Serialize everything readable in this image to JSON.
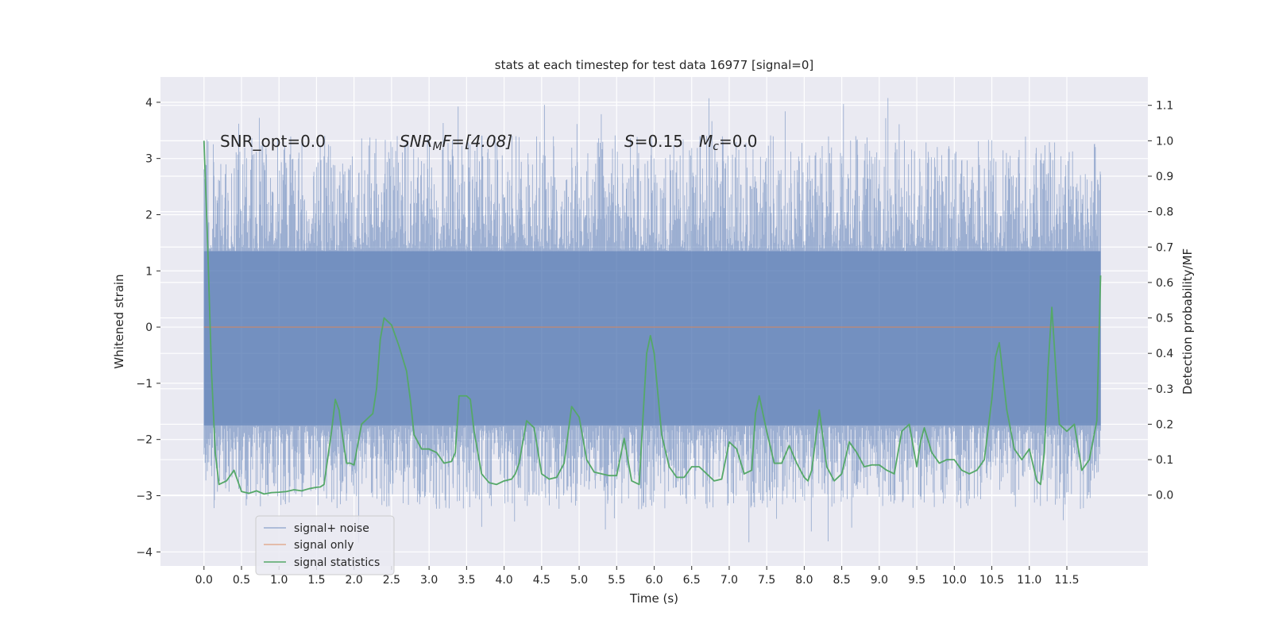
{
  "chart_data": {
    "type": "line",
    "title": "stats at each timestep for test data 16977 [signal=0]",
    "xlabel": "Time (s)",
    "ylabel_left": "Whitened strain",
    "ylabel_right": "Detection probability/MF",
    "xlim": [
      -0.58,
      12.58
    ],
    "ylim_left": [
      -4.25,
      4.45
    ],
    "ylim_right": [
      -0.2,
      1.18
    ],
    "x_ticks": [
      0.0,
      0.5,
      1.0,
      1.5,
      2.0,
      2.5,
      3.0,
      3.5,
      4.0,
      4.5,
      5.0,
      5.5,
      6.0,
      6.5,
      7.0,
      7.5,
      8.0,
      8.5,
      9.0,
      9.5,
      10.0,
      10.5,
      11.0,
      11.5
    ],
    "x_tick_labels": [
      "0.0",
      "0.5",
      "1.0",
      "1.5",
      "2.0",
      "2.5",
      "3.0",
      "3.5",
      "4.0",
      "4.5",
      "5.0",
      "5.5",
      "6.0",
      "6.5",
      "7.0",
      "7.5",
      "8.0",
      "8.5",
      "9.0",
      "9.5",
      "10.0",
      "10.5",
      "11.0",
      "11.5"
    ],
    "y_left_ticks": [
      -4,
      -3,
      -2,
      -1,
      0,
      1,
      2,
      3,
      4
    ],
    "y_left_tick_labels": [
      "−4",
      "−3",
      "−2",
      "−1",
      "0",
      "1",
      "2",
      "3",
      "4"
    ],
    "y_right_ticks": [
      0.0,
      0.1,
      0.2,
      0.3,
      0.4,
      0.5,
      0.6,
      0.7,
      0.8,
      0.9,
      1.0,
      1.1
    ],
    "y_right_tick_labels": [
      "0.0",
      "0.1",
      "0.2",
      "0.3",
      "0.4",
      "0.5",
      "0.6",
      "0.7",
      "0.8",
      "0.9",
      "1.0",
      "1.1"
    ],
    "grid": true,
    "legend_position": "lower-left",
    "annotations": {
      "snr_opt": "SNR_opt=0.0",
      "snr_mf_main": "SNR",
      "snr_mf_sub": "M",
      "snr_mf_rest": "F=[4.08]",
      "s_main": "S",
      "s_rest": "=0.15",
      "mc_main": "M",
      "mc_sub": "c",
      "mc_rest": "=0.0"
    },
    "series": [
      {
        "name": "signal+ noise",
        "axis": "left",
        "color": "#4c72b0",
        "opacity": 0.5,
        "kind": "noise",
        "x_range": [
          0.0,
          11.95
        ],
        "y_core_range": [
          -1.75,
          1.35
        ],
        "y_extremes": [
          -3.88,
          4.1
        ]
      },
      {
        "name": "signal only",
        "axis": "left",
        "color": "#dd8452",
        "opacity": 0.6,
        "x": [
          0.0,
          11.95
        ],
        "y": [
          0.0,
          0.0
        ]
      },
      {
        "name": "signal statistics",
        "axis": "right",
        "color": "#55a868",
        "x": [
          0.0,
          0.05,
          0.1,
          0.15,
          0.2,
          0.3,
          0.4,
          0.5,
          0.6,
          0.7,
          0.8,
          0.9,
          1.0,
          1.1,
          1.2,
          1.3,
          1.4,
          1.5,
          1.55,
          1.6,
          1.7,
          1.75,
          1.8,
          1.85,
          1.9,
          1.95,
          2.0,
          2.1,
          2.2,
          2.25,
          2.3,
          2.35,
          2.4,
          2.5,
          2.55,
          2.6,
          2.7,
          2.75,
          2.8,
          2.9,
          3.0,
          3.1,
          3.2,
          3.3,
          3.35,
          3.4,
          3.5,
          3.55,
          3.6,
          3.7,
          3.8,
          3.9,
          4.0,
          4.1,
          4.15,
          4.2,
          4.3,
          4.4,
          4.5,
          4.6,
          4.7,
          4.8,
          4.9,
          5.0,
          5.1,
          5.2,
          5.3,
          5.4,
          5.5,
          5.6,
          5.7,
          5.8,
          5.9,
          5.95,
          6.0,
          6.1,
          6.2,
          6.3,
          6.4,
          6.5,
          6.6,
          6.7,
          6.8,
          6.9,
          7.0,
          7.1,
          7.2,
          7.3,
          7.35,
          7.4,
          7.5,
          7.6,
          7.7,
          7.8,
          7.9,
          8.0,
          8.05,
          8.1,
          8.2,
          8.3,
          8.4,
          8.5,
          8.6,
          8.7,
          8.8,
          8.9,
          9.0,
          9.1,
          9.2,
          9.3,
          9.4,
          9.5,
          9.55,
          9.6,
          9.7,
          9.8,
          9.9,
          10.0,
          10.1,
          10.2,
          10.3,
          10.4,
          10.5,
          10.55,
          10.6,
          10.7,
          10.8,
          10.9,
          11.0,
          11.1,
          11.15,
          11.2,
          11.25,
          11.3,
          11.4,
          11.5,
          11.6,
          11.7,
          11.8,
          11.9,
          11.95
        ],
        "y": [
          1.0,
          0.7,
          0.35,
          0.12,
          0.03,
          0.04,
          0.07,
          0.01,
          0.005,
          0.012,
          0.003,
          0.007,
          0.008,
          0.01,
          0.015,
          0.012,
          0.018,
          0.022,
          0.023,
          0.03,
          0.18,
          0.27,
          0.24,
          0.16,
          0.09,
          0.09,
          0.085,
          0.2,
          0.22,
          0.23,
          0.3,
          0.44,
          0.5,
          0.48,
          0.45,
          0.42,
          0.35,
          0.27,
          0.17,
          0.13,
          0.13,
          0.12,
          0.09,
          0.095,
          0.12,
          0.28,
          0.28,
          0.27,
          0.18,
          0.06,
          0.035,
          0.03,
          0.04,
          0.045,
          0.06,
          0.09,
          0.21,
          0.19,
          0.06,
          0.045,
          0.05,
          0.09,
          0.25,
          0.22,
          0.1,
          0.065,
          0.06,
          0.055,
          0.055,
          0.16,
          0.04,
          0.03,
          0.4,
          0.45,
          0.4,
          0.17,
          0.08,
          0.05,
          0.05,
          0.08,
          0.08,
          0.06,
          0.04,
          0.045,
          0.15,
          0.13,
          0.06,
          0.07,
          0.23,
          0.28,
          0.18,
          0.09,
          0.09,
          0.14,
          0.09,
          0.05,
          0.04,
          0.07,
          0.24,
          0.08,
          0.04,
          0.06,
          0.15,
          0.12,
          0.08,
          0.085,
          0.085,
          0.07,
          0.06,
          0.18,
          0.2,
          0.08,
          0.15,
          0.19,
          0.12,
          0.09,
          0.1,
          0.1,
          0.07,
          0.06,
          0.07,
          0.1,
          0.27,
          0.39,
          0.43,
          0.24,
          0.13,
          0.1,
          0.13,
          0.04,
          0.03,
          0.12,
          0.36,
          0.53,
          0.2,
          0.18,
          0.2,
          0.07,
          0.1,
          0.21,
          0.62
        ]
      }
    ]
  }
}
